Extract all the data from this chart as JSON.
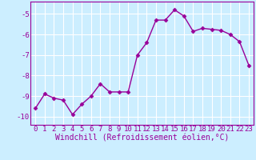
{
  "x": [
    0,
    1,
    2,
    3,
    4,
    5,
    6,
    7,
    8,
    9,
    10,
    11,
    12,
    13,
    14,
    15,
    16,
    17,
    18,
    19,
    20,
    21,
    22,
    23
  ],
  "y": [
    -9.6,
    -8.9,
    -9.1,
    -9.2,
    -9.9,
    -9.4,
    -9.0,
    -8.4,
    -8.8,
    -8.8,
    -8.8,
    -7.0,
    -6.4,
    -5.3,
    -5.3,
    -4.8,
    -5.1,
    -5.85,
    -5.7,
    -5.75,
    -5.8,
    -6.0,
    -6.35,
    -7.5
  ],
  "line_color": "#990099",
  "marker": "D",
  "marker_size": 2.5,
  "bg_color": "#cceeff",
  "grid_color": "#ffffff",
  "xlabel": "Windchill (Refroidissement éolien,°C)",
  "xlabel_fontsize": 7,
  "xlim": [
    -0.5,
    23.5
  ],
  "ylim": [
    -10.4,
    -4.4
  ],
  "yticks": [
    -10,
    -9,
    -8,
    -7,
    -6,
    -5
  ],
  "xticks": [
    0,
    1,
    2,
    3,
    4,
    5,
    6,
    7,
    8,
    9,
    10,
    11,
    12,
    13,
    14,
    15,
    16,
    17,
    18,
    19,
    20,
    21,
    22,
    23
  ],
  "tick_fontsize": 6.5,
  "tick_color": "#990099",
  "axis_color": "#990099",
  "line_width": 1.0
}
